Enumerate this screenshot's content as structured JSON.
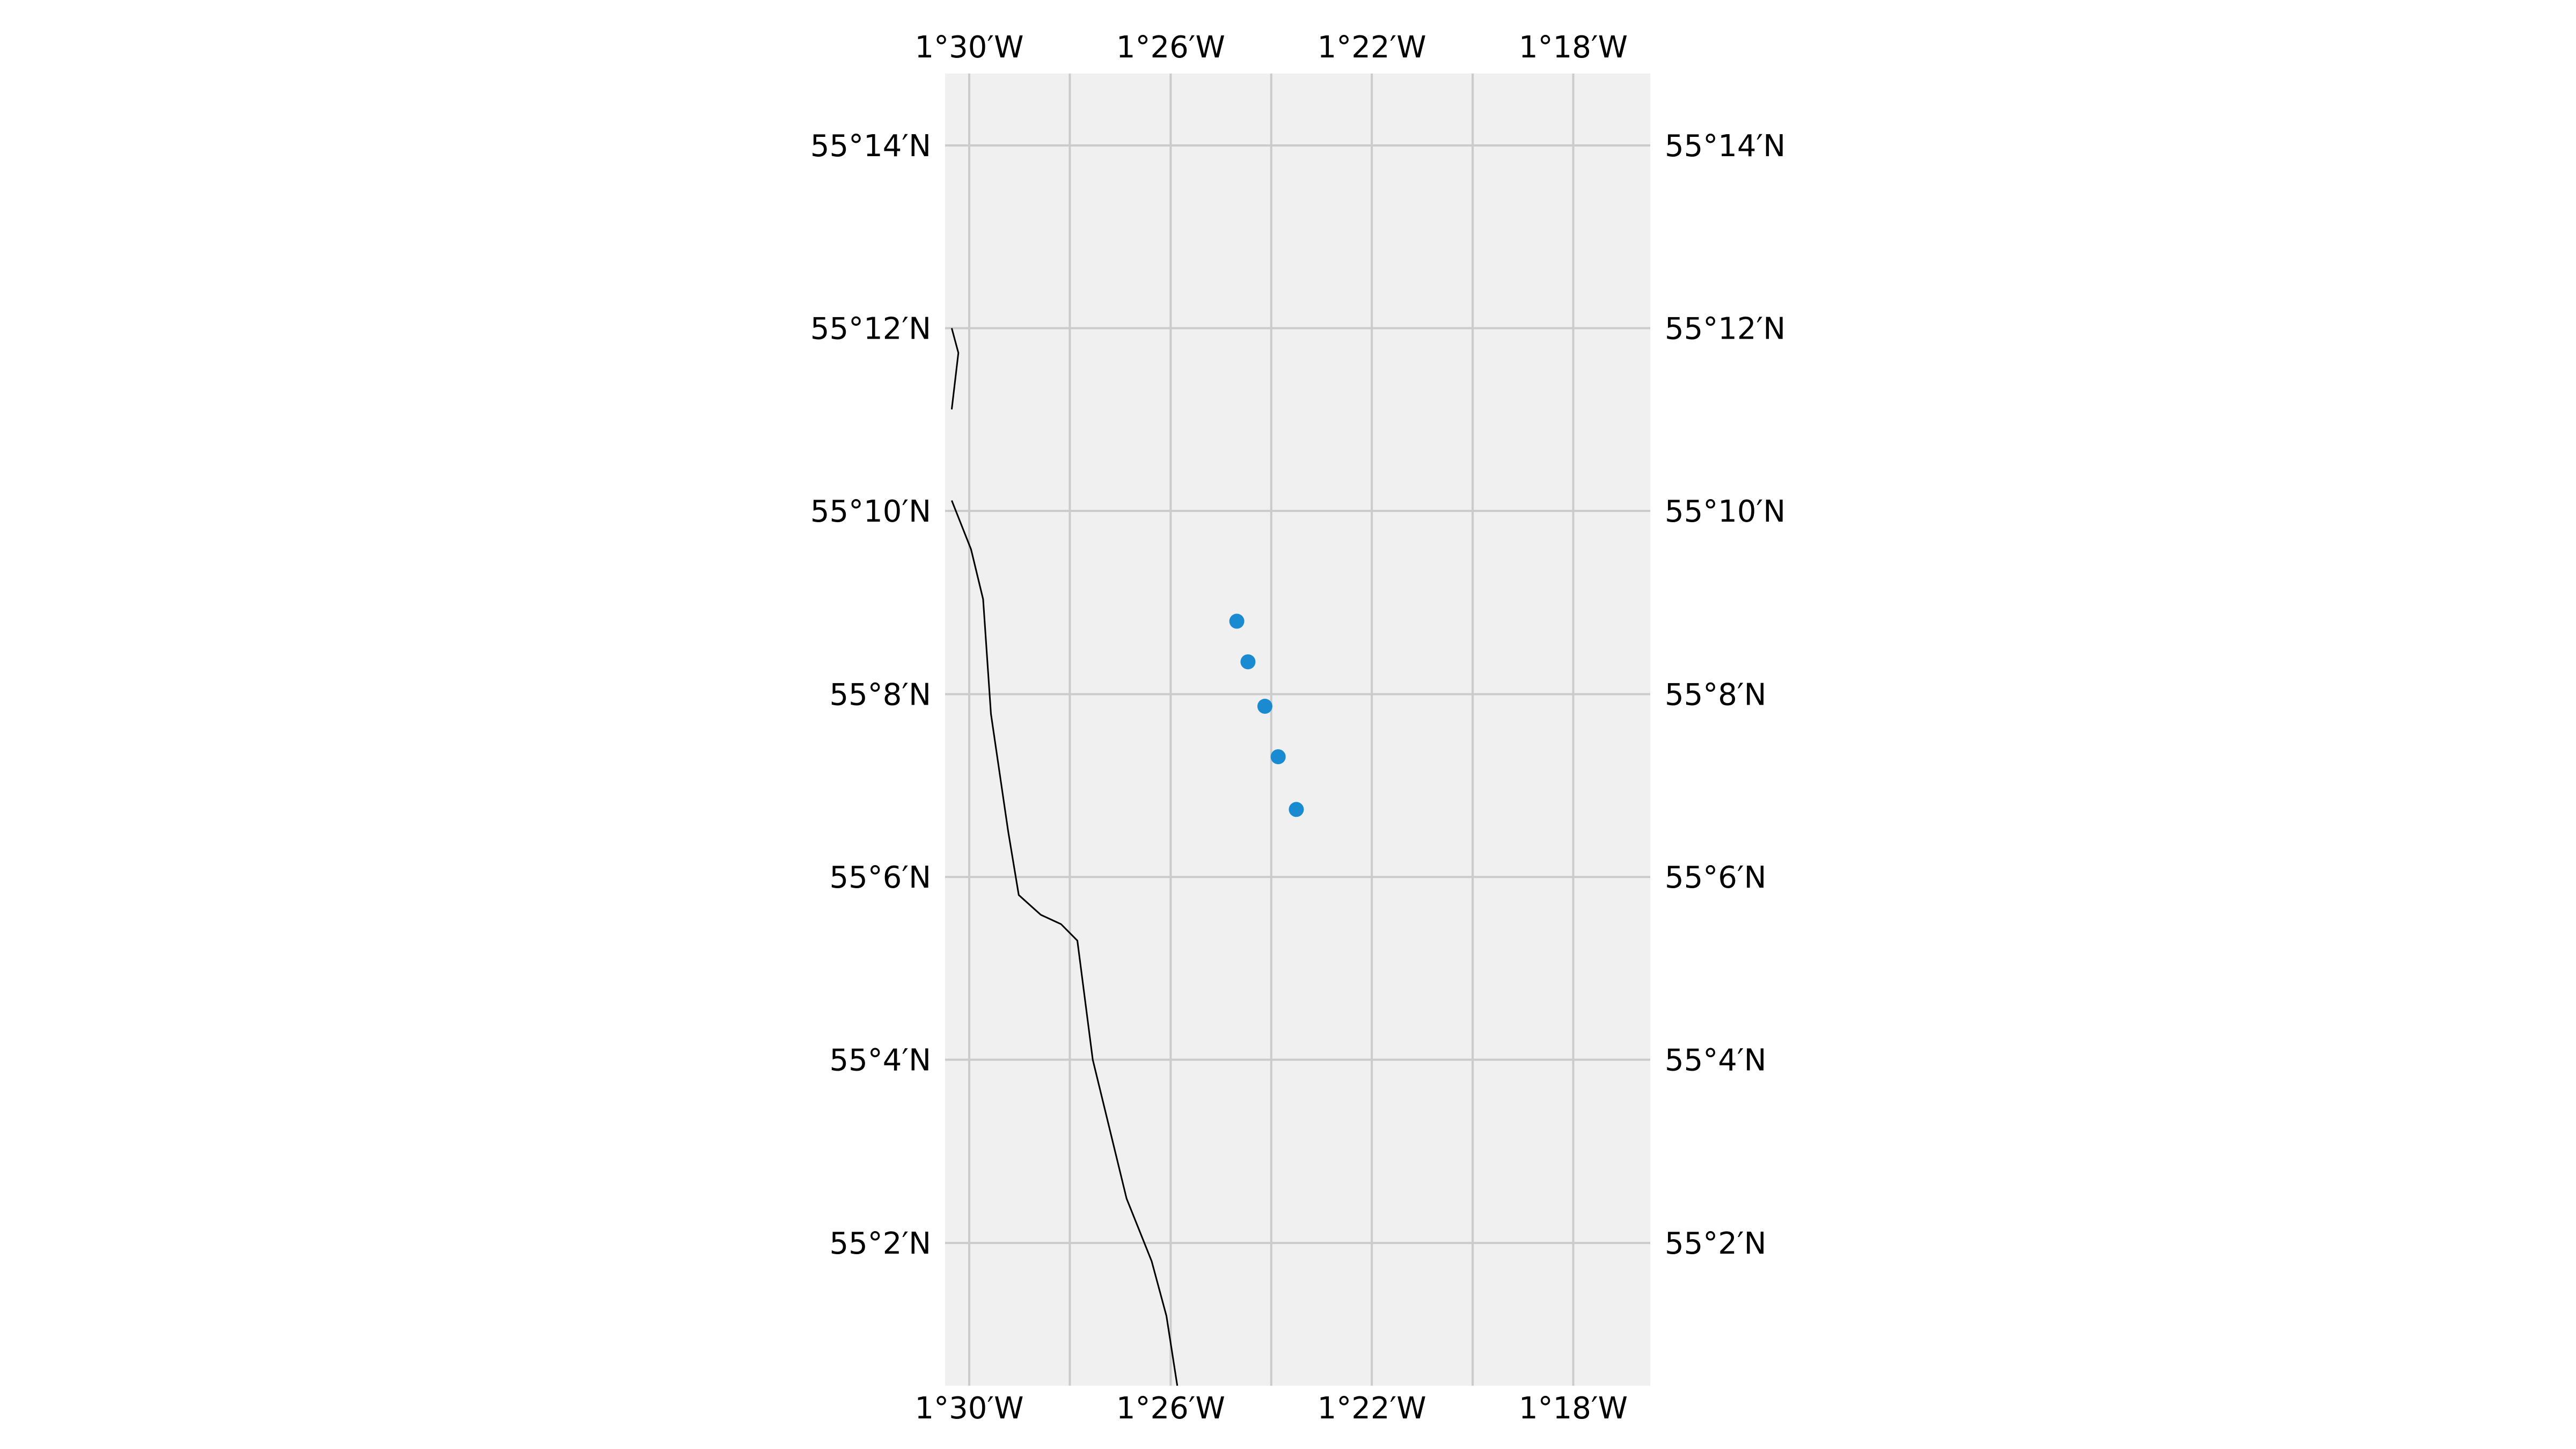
{
  "map": {
    "extent": {
      "lon_min": -1.508,
      "lon_max": -1.2745,
      "lat_min": 55.0073,
      "lat_max": 55.2464
    },
    "background_color": "#f0f0f0",
    "grid_color": "#cbcbcb",
    "coastline_color": "#000000",
    "marker_color": "#1a8bd0",
    "lon_ticks": [
      {
        "value": -1.5,
        "label": "1°30′W"
      },
      {
        "value": -1.4333,
        "label": "1°26′W"
      },
      {
        "value": -1.3667,
        "label": "1°22′W"
      },
      {
        "value": -1.3,
        "label": "1°18′W"
      }
    ],
    "lon_gridlines": [
      -1.5,
      -1.4667,
      -1.4333,
      -1.4,
      -1.3667,
      -1.3333,
      -1.3
    ],
    "lat_ticks": [
      {
        "value": 55.2333,
        "label": "55°14′N"
      },
      {
        "value": 55.2,
        "label": "55°12′N"
      },
      {
        "value": 55.1667,
        "label": "55°10′N"
      },
      {
        "value": 55.1333,
        "label": "55°8′N"
      },
      {
        "value": 55.1,
        "label": "55°6′N"
      },
      {
        "value": 55.0667,
        "label": "55°4′N"
      },
      {
        "value": 55.0333,
        "label": "55°2′N"
      }
    ],
    "points": [
      {
        "lon": -1.4114,
        "lat": 55.1466
      },
      {
        "lon": -1.4077,
        "lat": 55.1392
      },
      {
        "lon": -1.4021,
        "lat": 55.1311
      },
      {
        "lon": -1.3977,
        "lat": 55.1219
      },
      {
        "lon": -1.3917,
        "lat": 55.1123
      }
    ],
    "coastlines": [
      [
        [
          -1.5058,
          55.2
        ],
        [
          -1.5036,
          55.1955
        ],
        [
          -1.5058,
          55.1852
        ]
      ],
      [
        [
          -1.5058,
          55.1686
        ],
        [
          -1.4994,
          55.1597
        ],
        [
          -1.4954,
          55.1506
        ],
        [
          -1.4928,
          55.1297
        ],
        [
          -1.4871,
          55.1083
        ],
        [
          -1.4836,
          55.0967
        ],
        [
          -1.4763,
          55.0931
        ],
        [
          -1.4696,
          55.0914
        ],
        [
          -1.4642,
          55.0884
        ],
        [
          -1.4591,
          55.0667
        ],
        [
          -1.4479,
          55.0414
        ],
        [
          -1.4396,
          55.03
        ],
        [
          -1.4347,
          55.02
        ],
        [
          -1.4311,
          55.0073
        ]
      ]
    ]
  }
}
